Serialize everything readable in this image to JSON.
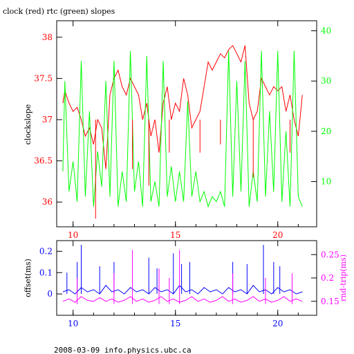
{
  "page": {
    "footer": "2008-03-09 info.physics.ubc.ca"
  },
  "colors": {
    "clock": "#ff0000",
    "rtc": "#00ff00",
    "offset": "#0000ff",
    "roundtrip": "#ff00ff",
    "axis_bottom": "#0000ff",
    "text": "#000000"
  },
  "chart_data": [
    {
      "type": "line",
      "title": "clock (red) rtc (green) slopes",
      "xlabel": "",
      "x_ticks": [
        10,
        15,
        20
      ],
      "xlim": [
        9.2,
        21.9
      ],
      "y_left": {
        "label": "clockslope",
        "ticks": [
          36,
          36.5,
          37,
          37.5,
          38
        ],
        "tick_labels": [
          "36",
          "36.5",
          "37",
          "37.5",
          "38"
        ],
        "ylim": [
          35.7,
          38.2
        ]
      },
      "y_right": {
        "label": "",
        "ticks": [
          10,
          20,
          30,
          40
        ],
        "tick_labels": [
          "10",
          "20",
          "30",
          "40"
        ],
        "ylim": [
          1,
          42
        ]
      },
      "series": [
        {
          "name": "clock",
          "axis": "left",
          "x": [
            9.5,
            9.6,
            9.8,
            10.0,
            10.2,
            10.4,
            10.6,
            10.8,
            11.0,
            11.2,
            11.4,
            11.6,
            11.8,
            12.0,
            12.2,
            12.4,
            12.6,
            12.8,
            13.0,
            13.2,
            13.4,
            13.6,
            13.8,
            14.0,
            14.2,
            14.4,
            14.6,
            14.8,
            15.0,
            15.2,
            15.4,
            15.6,
            15.8,
            16.0,
            16.2,
            16.4,
            16.6,
            16.8,
            17.0,
            17.2,
            17.4,
            17.6,
            17.8,
            18.0,
            18.2,
            18.4,
            18.6,
            18.8,
            19.0,
            19.2,
            19.4,
            19.6,
            19.8,
            20.0,
            20.2,
            20.4,
            20.6,
            20.8,
            21.0,
            21.2
          ],
          "y": [
            37.2,
            37.35,
            37.2,
            37.1,
            37.15,
            37.0,
            36.8,
            36.9,
            36.7,
            37.0,
            36.9,
            36.4,
            37.3,
            37.5,
            37.6,
            37.4,
            37.3,
            37.5,
            37.4,
            37.3,
            37.0,
            37.2,
            36.8,
            37.0,
            36.6,
            37.2,
            37.4,
            37.0,
            37.2,
            37.1,
            37.5,
            37.3,
            36.9,
            37.0,
            37.1,
            37.4,
            37.7,
            37.6,
            37.7,
            37.8,
            37.75,
            37.85,
            37.9,
            37.8,
            37.7,
            37.9,
            37.2,
            37.0,
            37.1,
            37.5,
            37.4,
            37.3,
            37.4,
            37.35,
            37.4,
            37.1,
            37.3,
            37.0,
            36.8,
            37.3
          ]
        },
        {
          "name": "rtc",
          "axis": "right",
          "x": [
            9.5,
            9.6,
            9.8,
            10.0,
            10.2,
            10.4,
            10.6,
            10.8,
            11.0,
            11.2,
            11.4,
            11.6,
            11.8,
            12.0,
            12.2,
            12.4,
            12.6,
            12.8,
            13.0,
            13.2,
            13.4,
            13.6,
            13.8,
            14.0,
            14.2,
            14.4,
            14.6,
            14.8,
            15.0,
            15.2,
            15.4,
            15.6,
            15.8,
            16.0,
            16.2,
            16.4,
            16.6,
            16.8,
            17.0,
            17.2,
            17.4,
            17.6,
            17.8,
            18.0,
            18.2,
            18.4,
            18.6,
            18.8,
            19.0,
            19.2,
            19.4,
            19.6,
            19.8,
            20.0,
            20.2,
            20.4,
            20.6,
            20.8,
            21.0,
            21.2
          ],
          "y": [
            12,
            30,
            8,
            14,
            6,
            34,
            7,
            24,
            5,
            16,
            9,
            30,
            7,
            34,
            5,
            12,
            6,
            36,
            8,
            14,
            5,
            35,
            6,
            10,
            5,
            34,
            7,
            13,
            6,
            12,
            6,
            26,
            7,
            12,
            6,
            8,
            5,
            7,
            6,
            8,
            5,
            36,
            7,
            30,
            8,
            34,
            5,
            12,
            6,
            36,
            7,
            24,
            8,
            36,
            6,
            20,
            5,
            36,
            7,
            5
          ]
        },
        {
          "name": "clock",
          "axis": "left",
          "note_spikes": "",
          "x": [
            11.1,
            12.9,
            13.7,
            14.7,
            16.2,
            17.2,
            18.8,
            20.6
          ],
          "y": [
            35.8,
            36.4,
            36.2,
            36.6,
            36.6,
            36.7,
            36.3,
            36.6
          ]
        }
      ]
    },
    {
      "type": "line",
      "title": "",
      "x_ticks": [
        10,
        15,
        20
      ],
      "x_tick_labels": [
        "10",
        "15",
        "20"
      ],
      "xlim": [
        9.2,
        21.9
      ],
      "y_left": {
        "label": "offset(ms)",
        "ticks": [
          0,
          0.1,
          0.2
        ],
        "tick_labels": [
          "0",
          "0.1",
          "0.2"
        ],
        "ylim": [
          -0.1,
          0.25
        ]
      },
      "y_right": {
        "label": "rnd-trip(ms)",
        "ticks": [
          0.15,
          0.2,
          0.25
        ],
        "tick_labels": [
          "0.15",
          "0.2",
          "0.25"
        ],
        "ylim": [
          0.12,
          0.28
        ]
      },
      "series": [
        {
          "name": "offset",
          "axis": "left",
          "x": [
            9.5,
            9.8,
            10.1,
            10.4,
            10.7,
            11.0,
            11.3,
            11.6,
            11.9,
            12.2,
            12.5,
            12.8,
            13.1,
            13.4,
            13.7,
            14.0,
            14.3,
            14.6,
            14.9,
            15.2,
            15.5,
            15.8,
            16.1,
            16.4,
            16.7,
            17.0,
            17.3,
            17.6,
            17.9,
            18.2,
            18.5,
            18.8,
            19.1,
            19.4,
            19.7,
            20.0,
            20.3,
            20.6,
            20.9,
            21.2
          ],
          "y": [
            0.01,
            0.02,
            0.0,
            0.03,
            0.01,
            0.02,
            0.0,
            0.04,
            0.01,
            0.02,
            0.0,
            0.03,
            0.01,
            0.02,
            0.0,
            0.03,
            0.01,
            0.02,
            0.0,
            0.04,
            0.01,
            0.02,
            0.0,
            0.03,
            0.01,
            0.02,
            0.0,
            0.03,
            0.01,
            0.02,
            0.0,
            0.04,
            0.01,
            0.02,
            0.0,
            0.03,
            0.01,
            0.02,
            0.0,
            0.01
          ]
        },
        {
          "name": "roundtrip",
          "axis": "right",
          "x": [
            9.5,
            9.8,
            10.1,
            10.4,
            10.7,
            11.0,
            11.3,
            11.6,
            11.9,
            12.2,
            12.5,
            12.8,
            13.1,
            13.4,
            13.7,
            14.0,
            14.3,
            14.6,
            14.9,
            15.2,
            15.5,
            15.8,
            16.1,
            16.4,
            16.7,
            17.0,
            17.3,
            17.6,
            17.9,
            18.2,
            18.5,
            18.8,
            19.1,
            19.4,
            19.7,
            20.0,
            20.3,
            20.6,
            20.9,
            21.2
          ],
          "y": [
            0.15,
            0.155,
            0.148,
            0.16,
            0.152,
            0.15,
            0.158,
            0.15,
            0.155,
            0.148,
            0.152,
            0.16,
            0.15,
            0.155,
            0.148,
            0.152,
            0.16,
            0.15,
            0.155,
            0.148,
            0.152,
            0.16,
            0.15,
            0.155,
            0.148,
            0.152,
            0.16,
            0.15,
            0.155,
            0.148,
            0.152,
            0.16,
            0.15,
            0.155,
            0.148,
            0.152,
            0.16,
            0.15,
            0.155,
            0.15
          ]
        },
        {
          "name": "offset",
          "axis": "left",
          "x": [
            9.7,
            10.2,
            10.4,
            11.3,
            12.0,
            13.7,
            14.1,
            14.9,
            15.3,
            15.7,
            17.8,
            18.5,
            19.3,
            19.8,
            20.1
          ],
          "y": [
            0.1,
            0.15,
            0.23,
            0.13,
            0.15,
            0.17,
            0.12,
            0.19,
            0.14,
            0.15,
            0.15,
            0.14,
            0.23,
            0.15,
            0.13
          ]
        },
        {
          "name": "roundtrip",
          "axis": "right",
          "x": [
            10.2,
            12.0,
            12.9,
            14.2,
            14.7,
            15.2,
            17.8,
            19.4,
            20.7
          ],
          "y": [
            0.2,
            0.21,
            0.26,
            0.22,
            0.2,
            0.26,
            0.21,
            0.2,
            0.21
          ]
        }
      ]
    }
  ]
}
